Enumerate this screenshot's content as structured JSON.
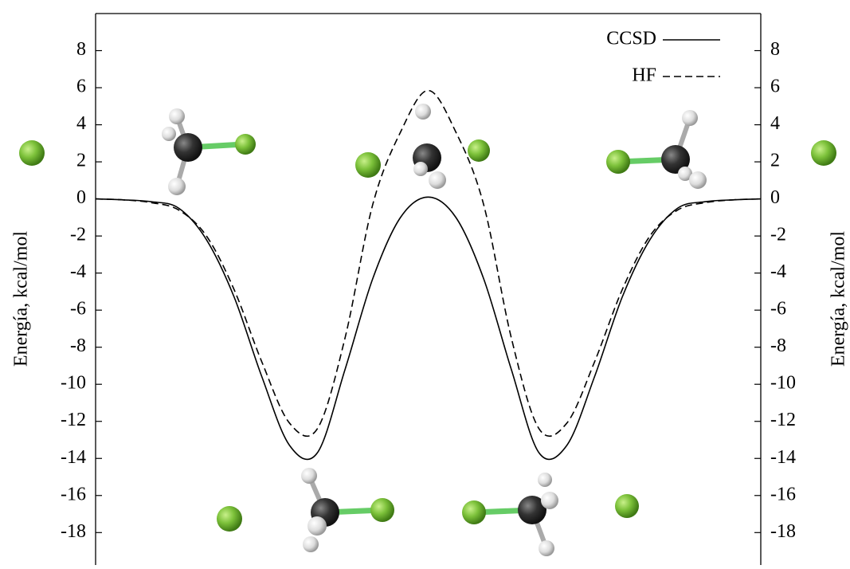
{
  "chart_data": {
    "type": "line",
    "y_label": "Energía, kcal/mol",
    "x": [
      -6,
      -5.5,
      -5,
      -4.5,
      -4,
      -3.5,
      -3,
      -2.5,
      -2,
      -1.5,
      -1,
      -0.5,
      0,
      0.5,
      1,
      1.5,
      2,
      2.5,
      3,
      3.5,
      4,
      4.5,
      5,
      5.5,
      6
    ],
    "xlim": [
      -6,
      6
    ],
    "ylim": [
      -19.75,
      10
    ],
    "yticks": [
      -18,
      -16,
      -14,
      -12,
      -10,
      -8,
      -6,
      -4,
      -2,
      0,
      2,
      4,
      6,
      8
    ],
    "legend": "upper right",
    "series": [
      {
        "name": "CCSD",
        "color": "#000000",
        "dash": "solid",
        "values": [
          0,
          -0.05,
          -0.15,
          -0.5,
          -2.2,
          -5.3,
          -9.6,
          -13.3,
          -13.7,
          -9.2,
          -4.3,
          -1.0,
          0.1,
          -1.0,
          -4.3,
          -9.2,
          -13.7,
          -13.3,
          -9.6,
          -5.3,
          -2.2,
          -0.5,
          -0.15,
          -0.05,
          0
        ]
      },
      {
        "name": "HF",
        "color": "#000000",
        "dash": "dashed",
        "values": [
          0,
          -0.05,
          -0.2,
          -0.6,
          -2.0,
          -4.9,
          -8.8,
          -12.1,
          -12.4,
          -7.5,
          -0.3,
          3.6,
          5.85,
          3.6,
          -0.3,
          -7.5,
          -12.4,
          -12.1,
          -8.8,
          -4.9,
          -2.0,
          -0.6,
          -0.2,
          -0.05,
          0
        ]
      }
    ]
  }
}
